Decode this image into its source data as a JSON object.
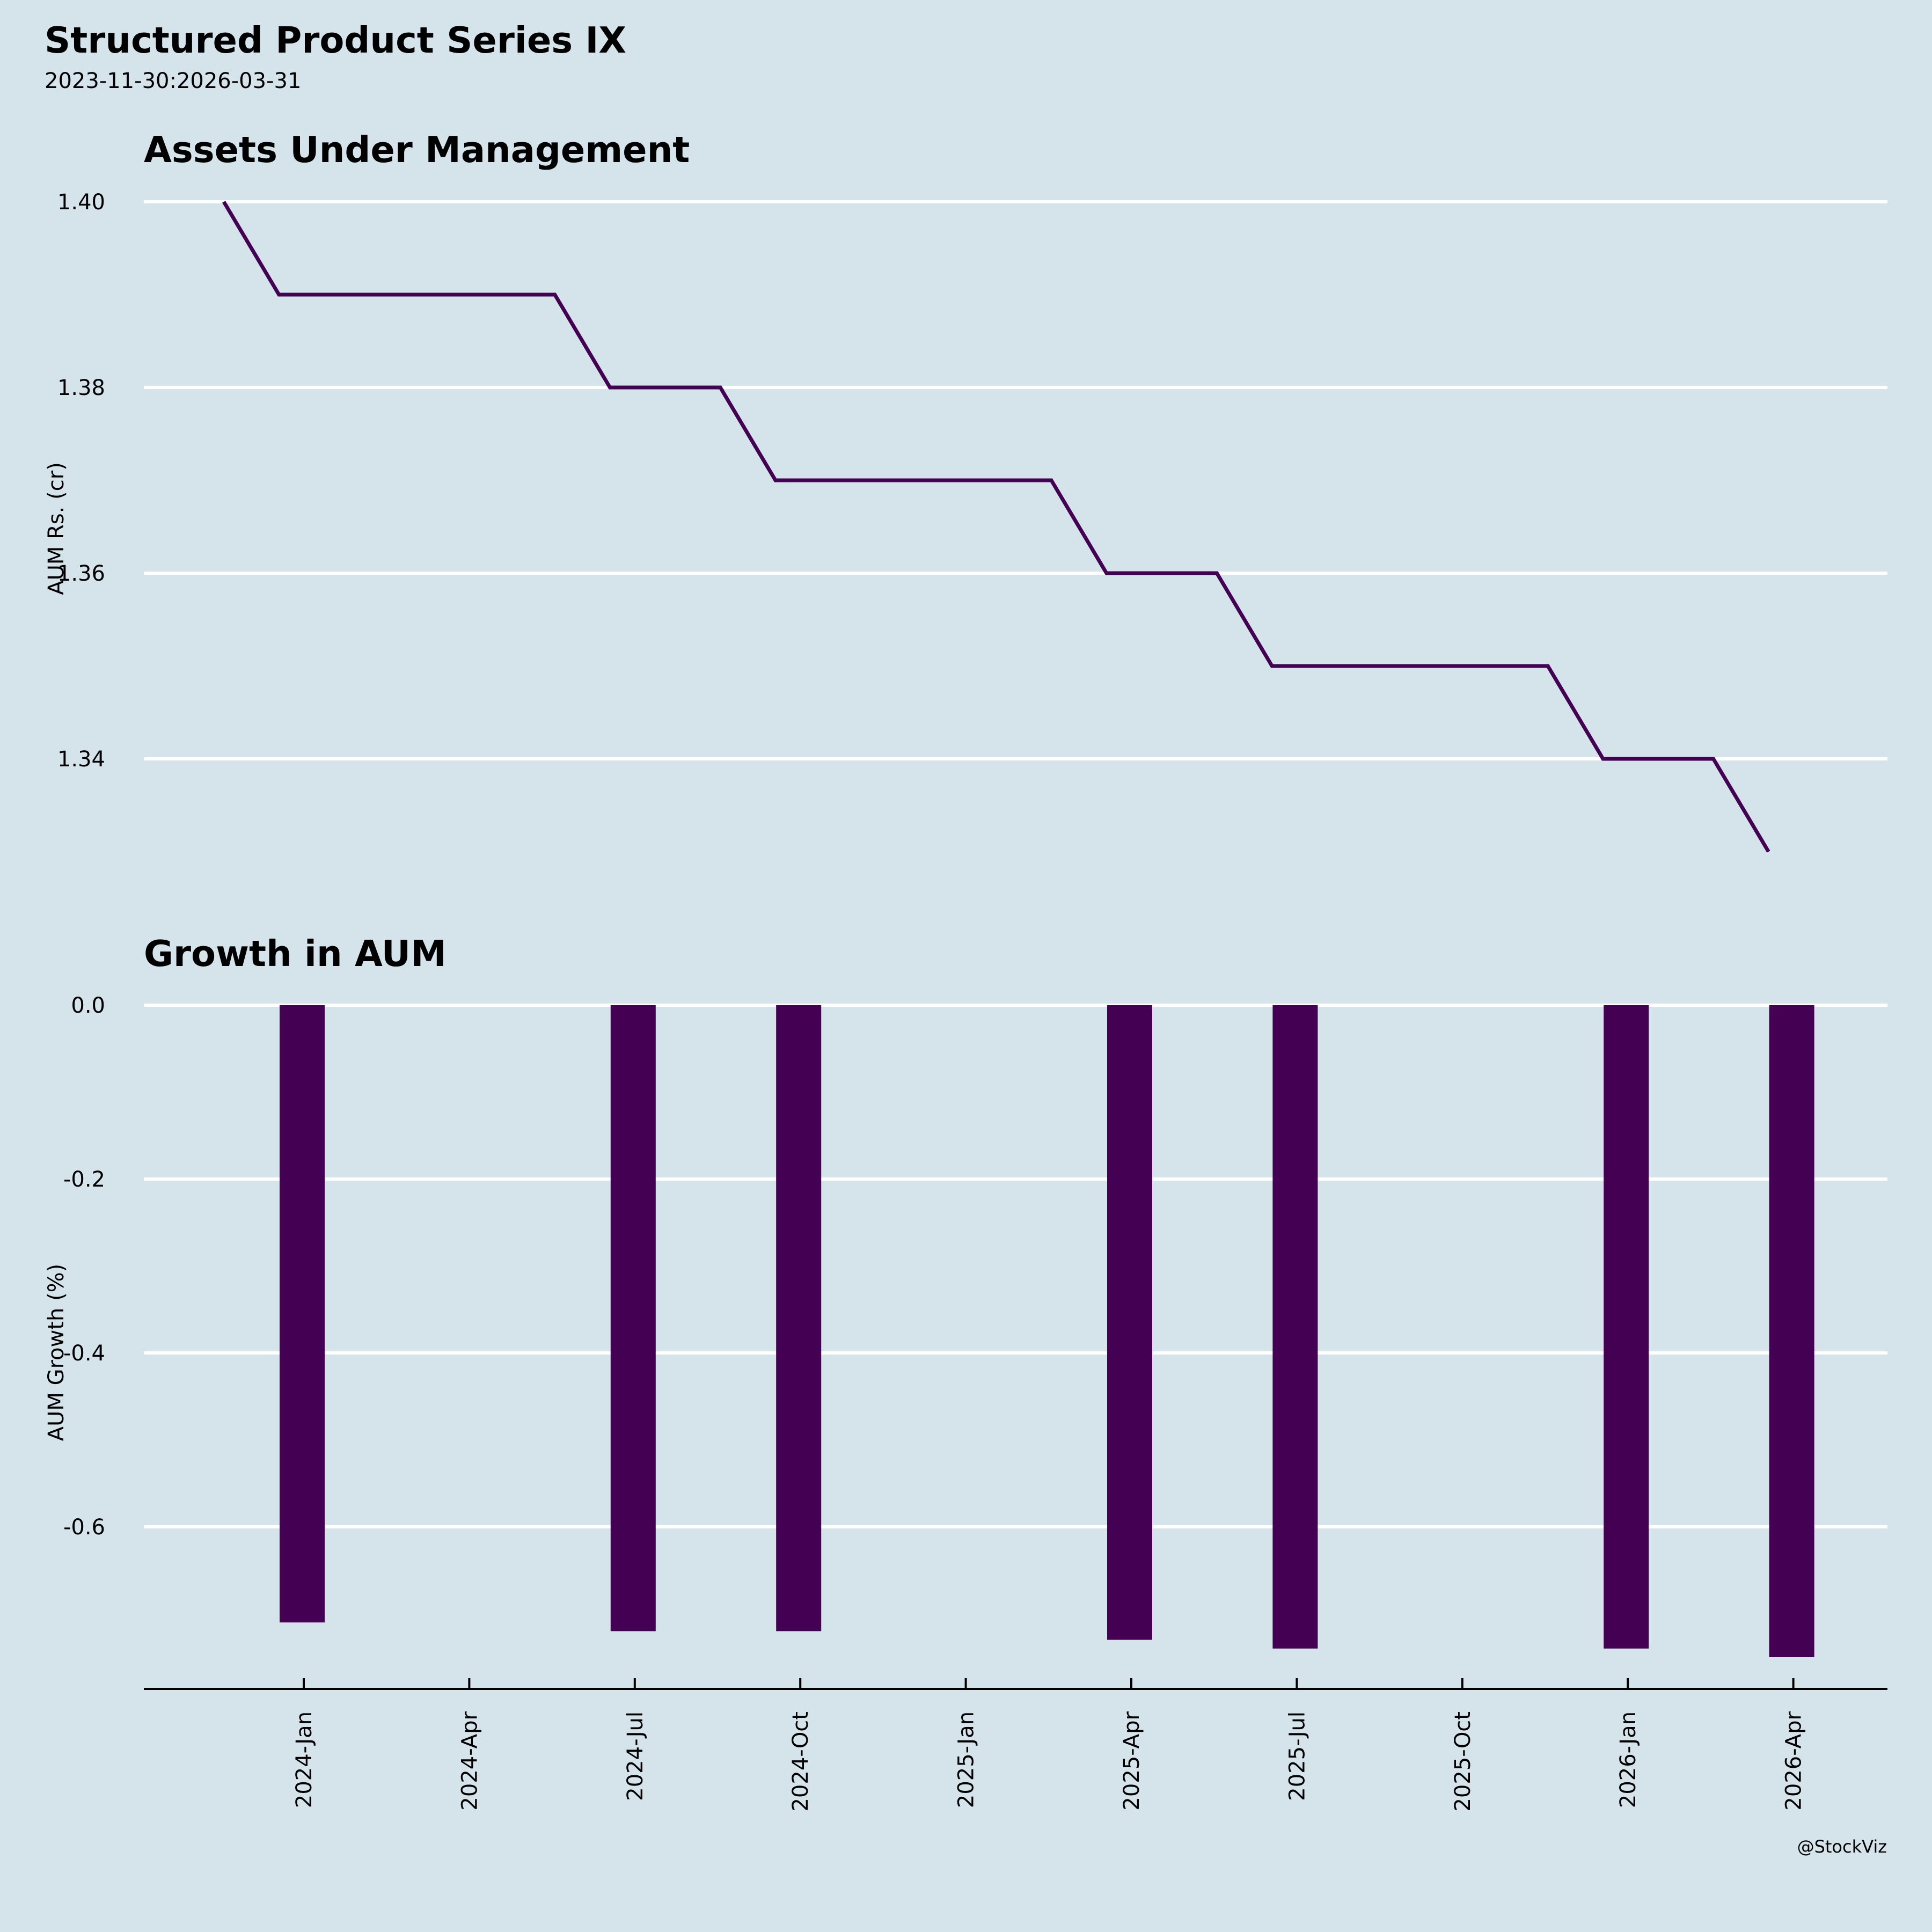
{
  "header": {
    "title": "Structured Product Series IX",
    "subtitle": "2023-11-30:2026-03-31"
  },
  "footer": {
    "credit": "@StockViz"
  },
  "colors": {
    "background": "#d5e4eb",
    "series": "#440154",
    "grid": "#ffffff",
    "axis": "#000000"
  },
  "chart_data": [
    {
      "type": "line",
      "title": "Assets Under Management",
      "xlabel": "",
      "ylabel": "AUM Rs. (cr)",
      "yticks": [
        "1.40",
        "1.38",
        "1.36",
        "1.34"
      ],
      "ytick_values": [
        1.4,
        1.38,
        1.36,
        1.34
      ],
      "ylim": [
        1.3275,
        1.4025
      ],
      "grid": "horizontal",
      "x": [
        "2023-11",
        "2023-12",
        "2024-01",
        "2024-02",
        "2024-03",
        "2024-04",
        "2024-05",
        "2024-06",
        "2024-07",
        "2024-08",
        "2024-09",
        "2024-10",
        "2024-11",
        "2024-12",
        "2025-01",
        "2025-02",
        "2025-03",
        "2025-04",
        "2025-05",
        "2025-06",
        "2025-07",
        "2025-08",
        "2025-09",
        "2025-10",
        "2025-11",
        "2025-12",
        "2026-01",
        "2026-02",
        "2026-03"
      ],
      "values": [
        1.4,
        1.39,
        1.39,
        1.39,
        1.39,
        1.39,
        1.39,
        1.38,
        1.38,
        1.38,
        1.37,
        1.37,
        1.37,
        1.37,
        1.37,
        1.37,
        1.36,
        1.36,
        1.36,
        1.35,
        1.35,
        1.35,
        1.35,
        1.35,
        1.35,
        1.34,
        1.34,
        1.34,
        1.33
      ]
    },
    {
      "type": "bar",
      "title": "Growth in AUM",
      "xlabel": "",
      "ylabel": "AUM Growth (%)",
      "yticks": [
        "0.0",
        "-0.2",
        "-0.4",
        "-0.6"
      ],
      "ytick_values": [
        0.0,
        -0.2,
        -0.4,
        -0.6
      ],
      "ylim": [
        -0.787,
        0.0
      ],
      "grid": "horizontal",
      "x": [
        "2023-12",
        "2024-06",
        "2024-09",
        "2025-03",
        "2025-06",
        "2025-12",
        "2026-03"
      ],
      "values": [
        -0.71,
        -0.72,
        -0.72,
        -0.73,
        -0.74,
        -0.74,
        -0.75
      ],
      "xticks": [
        "2024-Jan",
        "2024-Apr",
        "2024-Jul",
        "2024-Oct",
        "2025-Jan",
        "2025-Apr",
        "2025-Jul",
        "2025-Oct",
        "2026-Jan",
        "2026-Apr"
      ],
      "xtick_months": [
        "2024-01",
        "2024-04",
        "2024-07",
        "2024-10",
        "2025-01",
        "2025-04",
        "2025-07",
        "2025-10",
        "2026-01",
        "2026-04"
      ]
    }
  ]
}
